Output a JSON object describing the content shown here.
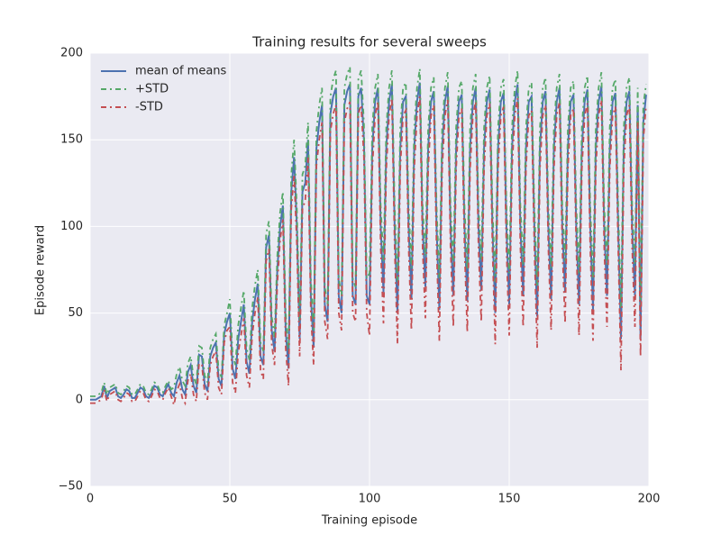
{
  "chart_data": {
    "type": "line",
    "title": "Training results for several sweeps",
    "xlabel": "Training episode",
    "ylabel": "Episode reward",
    "xlim": [
      0,
      200
    ],
    "ylim": [
      -50,
      200
    ],
    "xticks": [
      0,
      50,
      100,
      150,
      200
    ],
    "yticks": [
      {
        "value": -50,
        "label": "−50"
      },
      0,
      50,
      100,
      150,
      200
    ],
    "grid": true,
    "legend": "upper left",
    "x": [
      0,
      1,
      2,
      3,
      4,
      5,
      6,
      7,
      8,
      9,
      10,
      11,
      12,
      13,
      14,
      15,
      16,
      17,
      18,
      19,
      20,
      21,
      22,
      23,
      24,
      25,
      26,
      27,
      28,
      29,
      30,
      31,
      32,
      33,
      34,
      35,
      36,
      37,
      38,
      39,
      40,
      41,
      42,
      43,
      44,
      45,
      46,
      47,
      48,
      49,
      50,
      51,
      52,
      53,
      54,
      55,
      56,
      57,
      58,
      59,
      60,
      61,
      62,
      63,
      64,
      65,
      66,
      67,
      68,
      69,
      70,
      71,
      72,
      73,
      74,
      75,
      76,
      77,
      78,
      79,
      80,
      81,
      82,
      83,
      84,
      85,
      86,
      87,
      88,
      89,
      90,
      91,
      92,
      93,
      94,
      95,
      96,
      97,
      98,
      99,
      100,
      101,
      102,
      103,
      104,
      105,
      106,
      107,
      108,
      109,
      110,
      111,
      112,
      113,
      114,
      115,
      116,
      117,
      118,
      119,
      120,
      121,
      122,
      123,
      124,
      125,
      126,
      127,
      128,
      129,
      130,
      131,
      132,
      133,
      134,
      135,
      136,
      137,
      138,
      139,
      140,
      141,
      142,
      143,
      144,
      145,
      146,
      147,
      148,
      149,
      150,
      151,
      152,
      153,
      154,
      155,
      156,
      157,
      158,
      159,
      160,
      161,
      162,
      163,
      164,
      165,
      166,
      167,
      168,
      169,
      170,
      171,
      172,
      173,
      174,
      175,
      176,
      177,
      178,
      179,
      180,
      181,
      182,
      183,
      184,
      185,
      186,
      187,
      188,
      189,
      190,
      191,
      192,
      193,
      194,
      195,
      196,
      197,
      198,
      199
    ],
    "series": [
      {
        "name": "mean of means",
        "color": "#4c72b0",
        "dash": "solid",
        "values": [
          0,
          0,
          0,
          1,
          2,
          8,
          1,
          5,
          6,
          7,
          2,
          1,
          3,
          6,
          5,
          1,
          1,
          4,
          7,
          6,
          2,
          1,
          4,
          8,
          7,
          3,
          2,
          6,
          9,
          4,
          2,
          10,
          14,
          6,
          3,
          16,
          20,
          8,
          4,
          26,
          25,
          9,
          5,
          25,
          30,
          33,
          12,
          8,
          38,
          45,
          50,
          18,
          12,
          35,
          45,
          55,
          22,
          15,
          45,
          58,
          67,
          25,
          20,
          88,
          95,
          40,
          28,
          75,
          100,
          112,
          40,
          18,
          120,
          140,
          100,
          35,
          120,
          125,
          150,
          60,
          30,
          145,
          160,
          170,
          55,
          45,
          165,
          175,
          180,
          60,
          50,
          170,
          178,
          182,
          60,
          55,
          175,
          180,
          150,
          60,
          55,
          145,
          172,
          180,
          100,
          62,
          145,
          172,
          182,
          100,
          50,
          145,
          172,
          175,
          100,
          58,
          145,
          172,
          183,
          100,
          65,
          145,
          172,
          178,
          100,
          52,
          145,
          172,
          181,
          100,
          60,
          145,
          172,
          176,
          100,
          57,
          145,
          172,
          180,
          100,
          63,
          145,
          172,
          179,
          100,
          50,
          145,
          172,
          177,
          100,
          55,
          145,
          172,
          182,
          100,
          60,
          145,
          172,
          175,
          100,
          48,
          145,
          172,
          178,
          100,
          58,
          145,
          172,
          180,
          100,
          62,
          145,
          172,
          176,
          100,
          55,
          145,
          172,
          179,
          100,
          52,
          145,
          172,
          181,
          100,
          60,
          145,
          172,
          177,
          100,
          35,
          145,
          172,
          178,
          100,
          60,
          170,
          35,
          160,
          176
        ]
      },
      {
        "name": "+STD",
        "color": "#55a868",
        "dash": "dashdot",
        "values": [
          2,
          2,
          2,
          3,
          4,
          10,
          3,
          7,
          8,
          9,
          4,
          3,
          5,
          8,
          7,
          3,
          3,
          6,
          9,
          8,
          4,
          3,
          6,
          10,
          9,
          5,
          4,
          8,
          11,
          6,
          7,
          15,
          19,
          11,
          8,
          21,
          25,
          13,
          9,
          31,
          30,
          14,
          10,
          30,
          35,
          38,
          17,
          13,
          43,
          50,
          58,
          26,
          20,
          43,
          53,
          63,
          30,
          23,
          53,
          66,
          75,
          33,
          28,
          96,
          103,
          48,
          36,
          83,
          108,
          120,
          50,
          28,
          130,
          150,
          110,
          45,
          130,
          135,
          160,
          70,
          40,
          155,
          170,
          180,
          65,
          55,
          175,
          185,
          190,
          70,
          60,
          180,
          188,
          192,
          70,
          65,
          185,
          190,
          160,
          70,
          73,
          157,
          180,
          188,
          112,
          80,
          157,
          180,
          190,
          112,
          68,
          157,
          180,
          183,
          112,
          76,
          157,
          180,
          191,
          112,
          83,
          157,
          180,
          186,
          112,
          70,
          157,
          180,
          189,
          112,
          78,
          157,
          180,
          184,
          112,
          75,
          157,
          180,
          188,
          112,
          81,
          157,
          180,
          187,
          112,
          68,
          157,
          180,
          185,
          112,
          73,
          157,
          180,
          190,
          112,
          78,
          157,
          180,
          183,
          112,
          66,
          157,
          180,
          186,
          112,
          76,
          157,
          180,
          188,
          112,
          80,
          157,
          180,
          184,
          112,
          73,
          157,
          180,
          187,
          112,
          70,
          157,
          180,
          189,
          112,
          78,
          157,
          180,
          185,
          112,
          53,
          157,
          180,
          186,
          112,
          78,
          180,
          55,
          170,
          182
        ]
      },
      {
        "name": "-STD",
        "color": "#c44e52",
        "dash": "dashdot",
        "values": [
          -2,
          -2,
          -2,
          -1,
          0,
          6,
          -1,
          3,
          4,
          5,
          0,
          -1,
          1,
          4,
          3,
          -1,
          -1,
          2,
          5,
          4,
          0,
          -1,
          2,
          6,
          5,
          1,
          0,
          4,
          7,
          2,
          -3,
          5,
          9,
          1,
          -2,
          11,
          15,
          3,
          -1,
          21,
          20,
          4,
          0,
          20,
          25,
          28,
          7,
          3,
          33,
          40,
          42,
          10,
          4,
          27,
          37,
          47,
          14,
          7,
          37,
          50,
          59,
          17,
          12,
          80,
          87,
          32,
          20,
          67,
          92,
          104,
          30,
          8,
          110,
          130,
          90,
          25,
          110,
          115,
          140,
          50,
          20,
          135,
          150,
          160,
          45,
          35,
          155,
          165,
          170,
          50,
          40,
          160,
          168,
          172,
          50,
          45,
          165,
          170,
          140,
          50,
          37,
          133,
          164,
          172,
          88,
          44,
          133,
          164,
          174,
          88,
          32,
          133,
          164,
          167,
          88,
          40,
          133,
          164,
          175,
          88,
          47,
          133,
          164,
          170,
          88,
          34,
          133,
          164,
          173,
          88,
          42,
          133,
          164,
          168,
          88,
          39,
          133,
          164,
          172,
          88,
          45,
          133,
          164,
          171,
          88,
          32,
          133,
          164,
          169,
          88,
          37,
          133,
          164,
          174,
          88,
          42,
          133,
          164,
          167,
          88,
          30,
          133,
          164,
          170,
          88,
          40,
          133,
          164,
          172,
          88,
          44,
          133,
          164,
          168,
          88,
          37,
          133,
          164,
          171,
          88,
          34,
          133,
          164,
          173,
          88,
          42,
          133,
          164,
          169,
          88,
          17,
          133,
          164,
          170,
          88,
          42,
          160,
          25,
          150,
          170
        ]
      }
    ]
  }
}
